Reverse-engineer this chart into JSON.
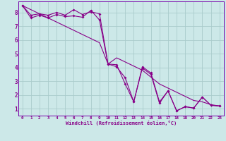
{
  "xlabel": "Windchill (Refroidissement éolien,°C)",
  "bg_color": "#cce8e8",
  "grid_color": "#aacccc",
  "line_color": "#880088",
  "spine_color": "#7700aa",
  "xlim": [
    -0.5,
    23.5
  ],
  "ylim": [
    0.5,
    8.8
  ],
  "xticks": [
    0,
    1,
    2,
    3,
    4,
    5,
    6,
    7,
    8,
    9,
    10,
    11,
    12,
    13,
    14,
    15,
    16,
    17,
    18,
    19,
    20,
    21,
    22,
    23
  ],
  "yticks": [
    1,
    2,
    3,
    4,
    5,
    6,
    7,
    8
  ],
  "line1_x": [
    0,
    1,
    2,
    3,
    4,
    5,
    6,
    7,
    8,
    9,
    10,
    11,
    12,
    13,
    14,
    15,
    16,
    17,
    18,
    19,
    20,
    21,
    22,
    23
  ],
  "line1_y": [
    8.5,
    7.8,
    7.9,
    7.8,
    8.0,
    7.8,
    8.2,
    7.85,
    8.05,
    7.9,
    4.25,
    4.2,
    2.8,
    1.5,
    4.05,
    3.6,
    1.5,
    2.3,
    0.85,
    1.15,
    1.05,
    1.85,
    1.25,
    1.2
  ],
  "line2_x": [
    0,
    1,
    2,
    3,
    4,
    5,
    6,
    7,
    8,
    9,
    10,
    11,
    12,
    13,
    14,
    15,
    16,
    17,
    18,
    19,
    20,
    21,
    22,
    23
  ],
  "line2_y": [
    8.5,
    7.6,
    7.8,
    7.6,
    7.85,
    7.7,
    7.75,
    7.65,
    8.15,
    7.45,
    4.25,
    4.05,
    3.25,
    1.5,
    3.95,
    3.5,
    1.4,
    2.3,
    0.85,
    1.15,
    1.05,
    1.85,
    1.25,
    1.2
  ],
  "line3_x": [
    0,
    1,
    2,
    3,
    4,
    5,
    6,
    7,
    8,
    9,
    10,
    11,
    12,
    13,
    14,
    15,
    16,
    17,
    18,
    19,
    20,
    21,
    22,
    23
  ],
  "line3_y": [
    8.5,
    8.2,
    7.9,
    7.6,
    7.3,
    7.0,
    6.7,
    6.4,
    6.1,
    5.8,
    4.25,
    4.7,
    4.4,
    4.1,
    3.8,
    3.3,
    2.8,
    2.5,
    2.2,
    1.9,
    1.6,
    1.5,
    1.3,
    1.2
  ]
}
